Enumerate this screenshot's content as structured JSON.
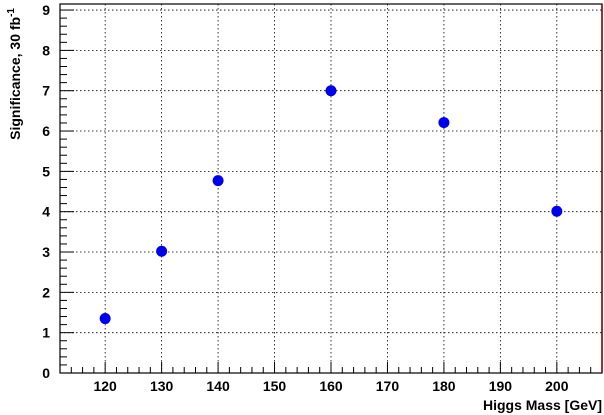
{
  "chart_data": {
    "type": "scatter",
    "title": "",
    "xlabel": "Higgs Mass [GeV]",
    "ylabel_text": "Significance, 30 fb",
    "ylabel_superscript": "-1",
    "xlim": [
      112,
      208
    ],
    "ylim": [
      0,
      9.15
    ],
    "xticks": [
      120,
      130,
      140,
      150,
      160,
      170,
      180,
      190,
      200
    ],
    "yticks": [
      0,
      1,
      2,
      3,
      4,
      5,
      6,
      7,
      8,
      9
    ],
    "grid": true,
    "series": [
      {
        "x": [
          120,
          130,
          140,
          160,
          180,
          200
        ],
        "y": [
          1.35,
          3.02,
          4.77,
          7.0,
          6.21,
          4.01
        ]
      }
    ],
    "colors": {
      "marker": "#0000ee",
      "frame": "#000000",
      "right_edge": "#8b0000",
      "grid": "#000000"
    }
  }
}
